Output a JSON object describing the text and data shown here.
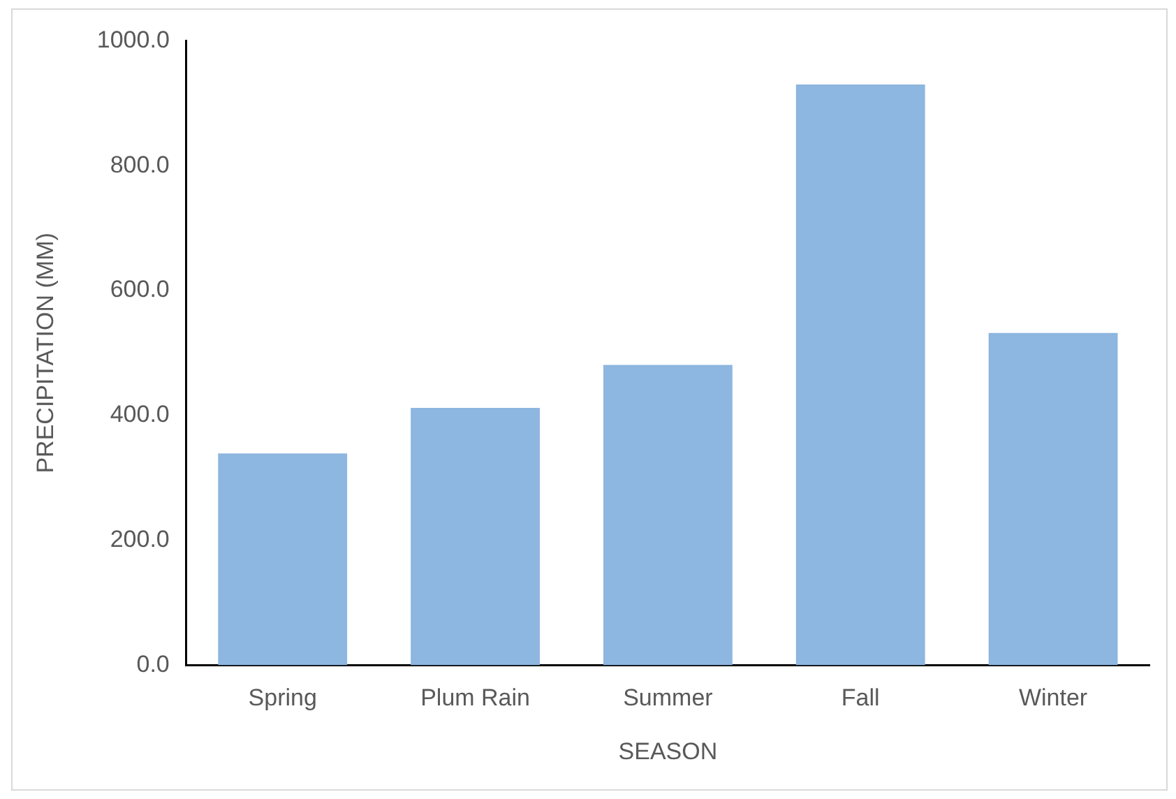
{
  "chart_data": {
    "type": "bar",
    "xlabel": "SEASON",
    "ylabel": "PRECIPITATION (MM)",
    "categories": [
      "Spring",
      "Plum Rain",
      "Summer",
      "Fall",
      "Winter"
    ],
    "values": [
      339,
      412,
      481,
      930,
      532
    ],
    "color": "#8db6e0",
    "ylim": [
      0,
      1000
    ],
    "yticks": [
      {
        "value": 0,
        "label": "0.0"
      },
      {
        "value": 200,
        "label": "200.0"
      },
      {
        "value": 400,
        "label": "400.0"
      },
      {
        "value": 600,
        "label": "600.0"
      },
      {
        "value": 800,
        "label": "800.0"
      },
      {
        "value": 1000,
        "label": "1000.0"
      }
    ],
    "grid": false,
    "legend": false
  }
}
